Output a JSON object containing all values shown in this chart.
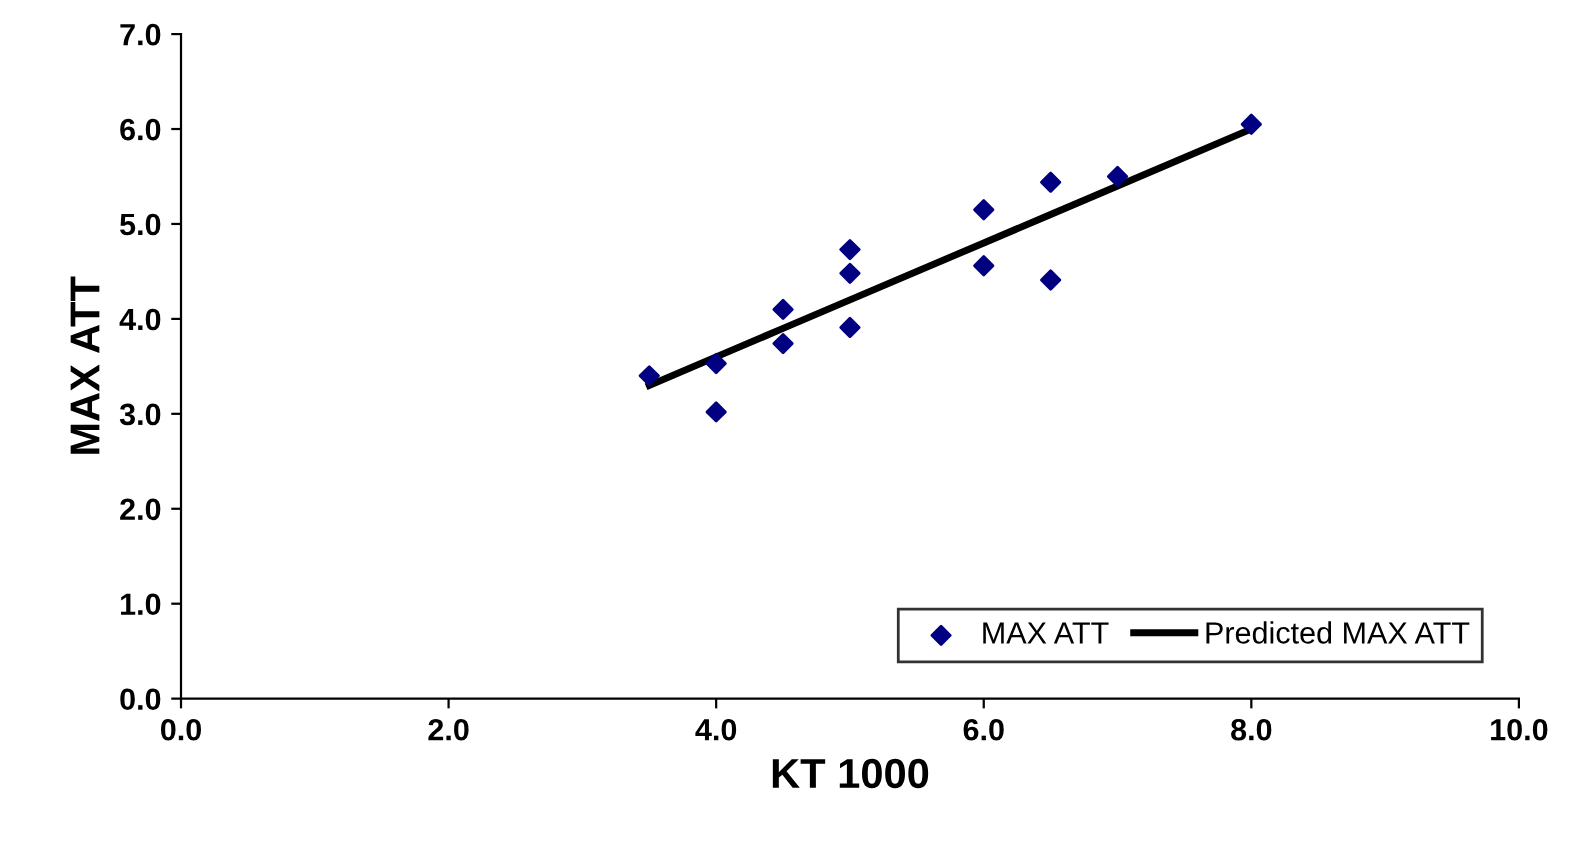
{
  "chart_data": {
    "type": "scatter",
    "xlabel": "KT 1000",
    "ylabel": "MAX ATT",
    "xlim": [
      0,
      10
    ],
    "ylim": [
      0,
      7
    ],
    "xticks": [
      {
        "value": 0,
        "label": "0.0"
      },
      {
        "value": 2,
        "label": "2.0"
      },
      {
        "value": 4,
        "label": "4.0"
      },
      {
        "value": 6,
        "label": "6.0"
      },
      {
        "value": 8,
        "label": "8.0"
      },
      {
        "value": 10,
        "label": "10.0"
      }
    ],
    "yticks": [
      {
        "value": 0,
        "label": "0.0"
      },
      {
        "value": 1,
        "label": "1.0"
      },
      {
        "value": 2,
        "label": "2.0"
      },
      {
        "value": 3,
        "label": "3.0"
      },
      {
        "value": 4,
        "label": "4.0"
      },
      {
        "value": 5,
        "label": "5.0"
      },
      {
        "value": 6,
        "label": "6.0"
      },
      {
        "value": 7,
        "label": "7.0"
      }
    ],
    "legend": "bottom right",
    "grid": false,
    "series": [
      {
        "name": "MAX ATT",
        "marker": "diamond",
        "color": "#000080",
        "x": [
          3.5,
          4.0,
          4.0,
          4.5,
          4.5,
          5.0,
          5.0,
          5.0,
          6.0,
          6.0,
          6.5,
          6.5,
          7.0,
          8.0
        ],
        "values": [
          3.4,
          3.53,
          3.02,
          4.1,
          3.74,
          4.73,
          4.48,
          3.91,
          5.15,
          4.56,
          5.44,
          4.41,
          5.5,
          6.05
        ]
      },
      {
        "name": "Predicted MAX ATT",
        "type": "line",
        "color": "#000000",
        "x": [
          3.5,
          4.0,
          4.5,
          5.0,
          6.0,
          6.5,
          7.0,
          8.0
        ],
        "values": [
          3.3,
          3.6,
          3.9,
          4.2,
          4.8,
          5.1,
          5.4,
          6.0
        ]
      }
    ]
  }
}
